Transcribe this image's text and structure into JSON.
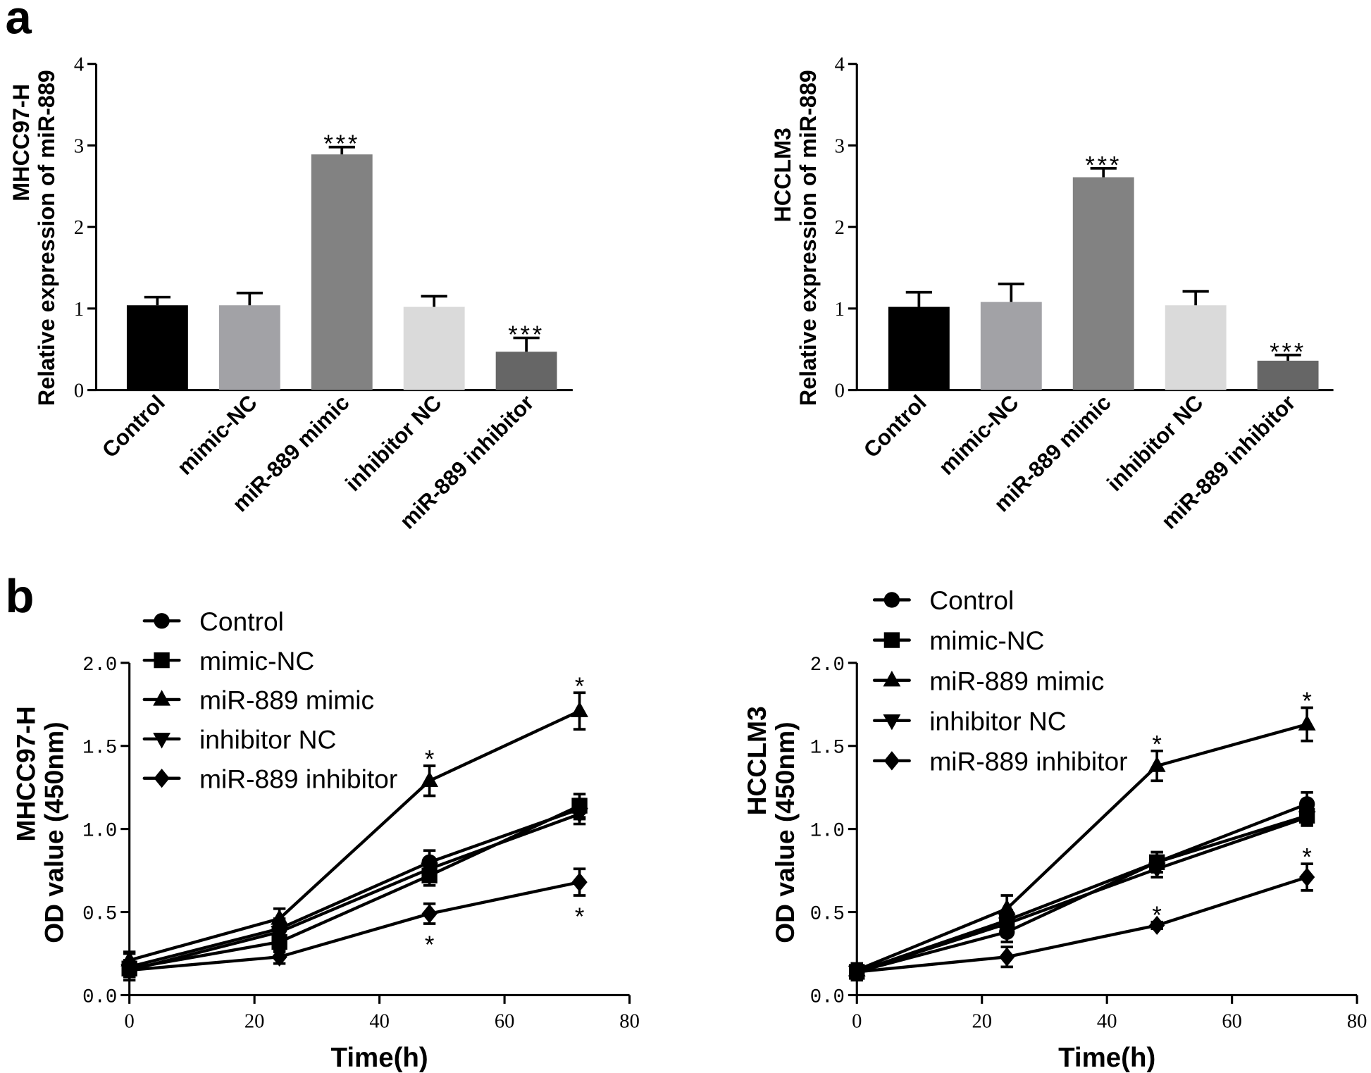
{
  "panels": {
    "a": "a",
    "b": "b"
  },
  "chart_data": [
    {
      "type": "bar",
      "ylabel_lines": [
        "MHCC97-H",
        "Relative expression of miR-889"
      ],
      "categories": [
        "Control",
        "mimic-NC",
        "miR-889 mimic",
        "inhibitor NC",
        "miR-889 inhibitor"
      ],
      "values": [
        1.04,
        1.04,
        2.89,
        1.02,
        0.47
      ],
      "errors": [
        0.1,
        0.15,
        0.09,
        0.13,
        0.17
      ],
      "colors": [
        "#000000",
        "#a2a2a6",
        "#828282",
        "#dadada",
        "#666666"
      ],
      "ylim": [
        0,
        4
      ],
      "yticks": [
        "0",
        "1",
        "2",
        "3",
        "4"
      ],
      "annotations": [
        {
          "category": "miR-889 mimic",
          "text": "***"
        },
        {
          "category": "miR-889 inhibitor",
          "text": "***"
        }
      ]
    },
    {
      "type": "bar",
      "ylabel_lines": [
        "HCCLM3",
        "Relative expression of miR-889"
      ],
      "categories": [
        "Control",
        "mimic-NC",
        "miR-889 mimic",
        "inhibitor NC",
        "miR-889 inhibitor"
      ],
      "values": [
        1.02,
        1.08,
        2.61,
        1.04,
        0.36
      ],
      "errors": [
        0.18,
        0.22,
        0.11,
        0.17,
        0.07
      ],
      "colors": [
        "#000000",
        "#a2a2a6",
        "#828282",
        "#dadada",
        "#666666"
      ],
      "ylim": [
        0,
        4
      ],
      "yticks": [
        "0",
        "1",
        "2",
        "3",
        "4"
      ],
      "annotations": [
        {
          "category": "miR-889 mimic",
          "text": "***"
        },
        {
          "category": "miR-889 inhibitor",
          "text": "***"
        }
      ]
    },
    {
      "type": "line",
      "ylabel_lines": [
        "MHCC97-H",
        "OD value (450nm)"
      ],
      "xlabel": "Time(h)",
      "xlim": [
        0,
        80
      ],
      "xticks": [
        "0",
        "20",
        "40",
        "60",
        "80"
      ],
      "ylim": [
        0,
        2
      ],
      "yticks": [
        "0.0",
        "0.5",
        "1.0",
        "1.5",
        "2.0"
      ],
      "x": [
        0,
        24,
        48,
        72
      ],
      "series": [
        {
          "name": "Control",
          "marker": "circle",
          "values": [
            0.17,
            0.4,
            0.8,
            1.12
          ],
          "errors": [
            0.08,
            0.06,
            0.07,
            0.06
          ]
        },
        {
          "name": "mimic-NC",
          "marker": "square",
          "values": [
            0.16,
            0.32,
            0.72,
            1.14
          ],
          "errors": [
            0.05,
            0.06,
            0.06,
            0.07
          ]
        },
        {
          "name": "miR-889 mimic",
          "marker": "triangle-up",
          "values": [
            0.21,
            0.46,
            1.29,
            1.71
          ],
          "errors": [
            0.05,
            0.06,
            0.09,
            0.11
          ]
        },
        {
          "name": "inhibitor NC",
          "marker": "triangle-down",
          "values": [
            0.15,
            0.38,
            0.76,
            1.09
          ],
          "errors": [
            0.04,
            0.06,
            0.06,
            0.06
          ]
        },
        {
          "name": "miR-889 inhibitor",
          "marker": "diamond",
          "values": [
            0.15,
            0.23,
            0.49,
            0.68
          ],
          "errors": [
            0.04,
            0.04,
            0.06,
            0.08
          ]
        }
      ],
      "annotations": [
        {
          "series": "miR-889 mimic",
          "x": 48,
          "text": "*",
          "below": false
        },
        {
          "series": "miR-889 mimic",
          "x": 72,
          "text": "*",
          "below": false
        },
        {
          "series": "miR-889 inhibitor",
          "x": 48,
          "text": "*",
          "below": true
        },
        {
          "series": "miR-889 inhibitor",
          "x": 72,
          "text": "*",
          "below": true
        }
      ]
    },
    {
      "type": "line",
      "ylabel_lines": [
        "HCCLM3",
        "OD value (450nm)"
      ],
      "xlabel": "Time(h)",
      "xlim": [
        0,
        80
      ],
      "xticks": [
        "0",
        "20",
        "40",
        "60",
        "80"
      ],
      "ylim": [
        0,
        2
      ],
      "yticks": [
        "0.0",
        "0.5",
        "1.0",
        "1.5",
        "2.0"
      ],
      "x": [
        0,
        24,
        48,
        72
      ],
      "series": [
        {
          "name": "Control",
          "marker": "circle",
          "values": [
            0.14,
            0.38,
            0.8,
            1.15
          ],
          "errors": [
            0.05,
            0.06,
            0.06,
            0.07
          ]
        },
        {
          "name": "mimic-NC",
          "marker": "square",
          "values": [
            0.14,
            0.45,
            0.8,
            1.08
          ],
          "errors": [
            0.04,
            0.06,
            0.06,
            0.05
          ]
        },
        {
          "name": "miR-889 mimic",
          "marker": "triangle-up",
          "values": [
            0.15,
            0.52,
            1.38,
            1.63
          ],
          "errors": [
            0.04,
            0.08,
            0.09,
            0.1
          ]
        },
        {
          "name": "inhibitor NC",
          "marker": "triangle-down",
          "values": [
            0.14,
            0.43,
            0.76,
            1.07
          ],
          "errors": [
            0.04,
            0.05,
            0.05,
            0.05
          ]
        },
        {
          "name": "miR-889 inhibitor",
          "marker": "diamond",
          "values": [
            0.14,
            0.23,
            0.42,
            0.71
          ],
          "errors": [
            0.04,
            0.06,
            0.02,
            0.08
          ]
        }
      ],
      "annotations": [
        {
          "series": "miR-889 mimic",
          "x": 48,
          "text": "*",
          "below": false
        },
        {
          "series": "miR-889 mimic",
          "x": 72,
          "text": "*",
          "below": false
        },
        {
          "series": "miR-889 inhibitor",
          "x": 48,
          "text": "*",
          "below": false
        },
        {
          "series": "miR-889 inhibitor",
          "x": 72,
          "text": "*",
          "below": false
        }
      ]
    }
  ]
}
